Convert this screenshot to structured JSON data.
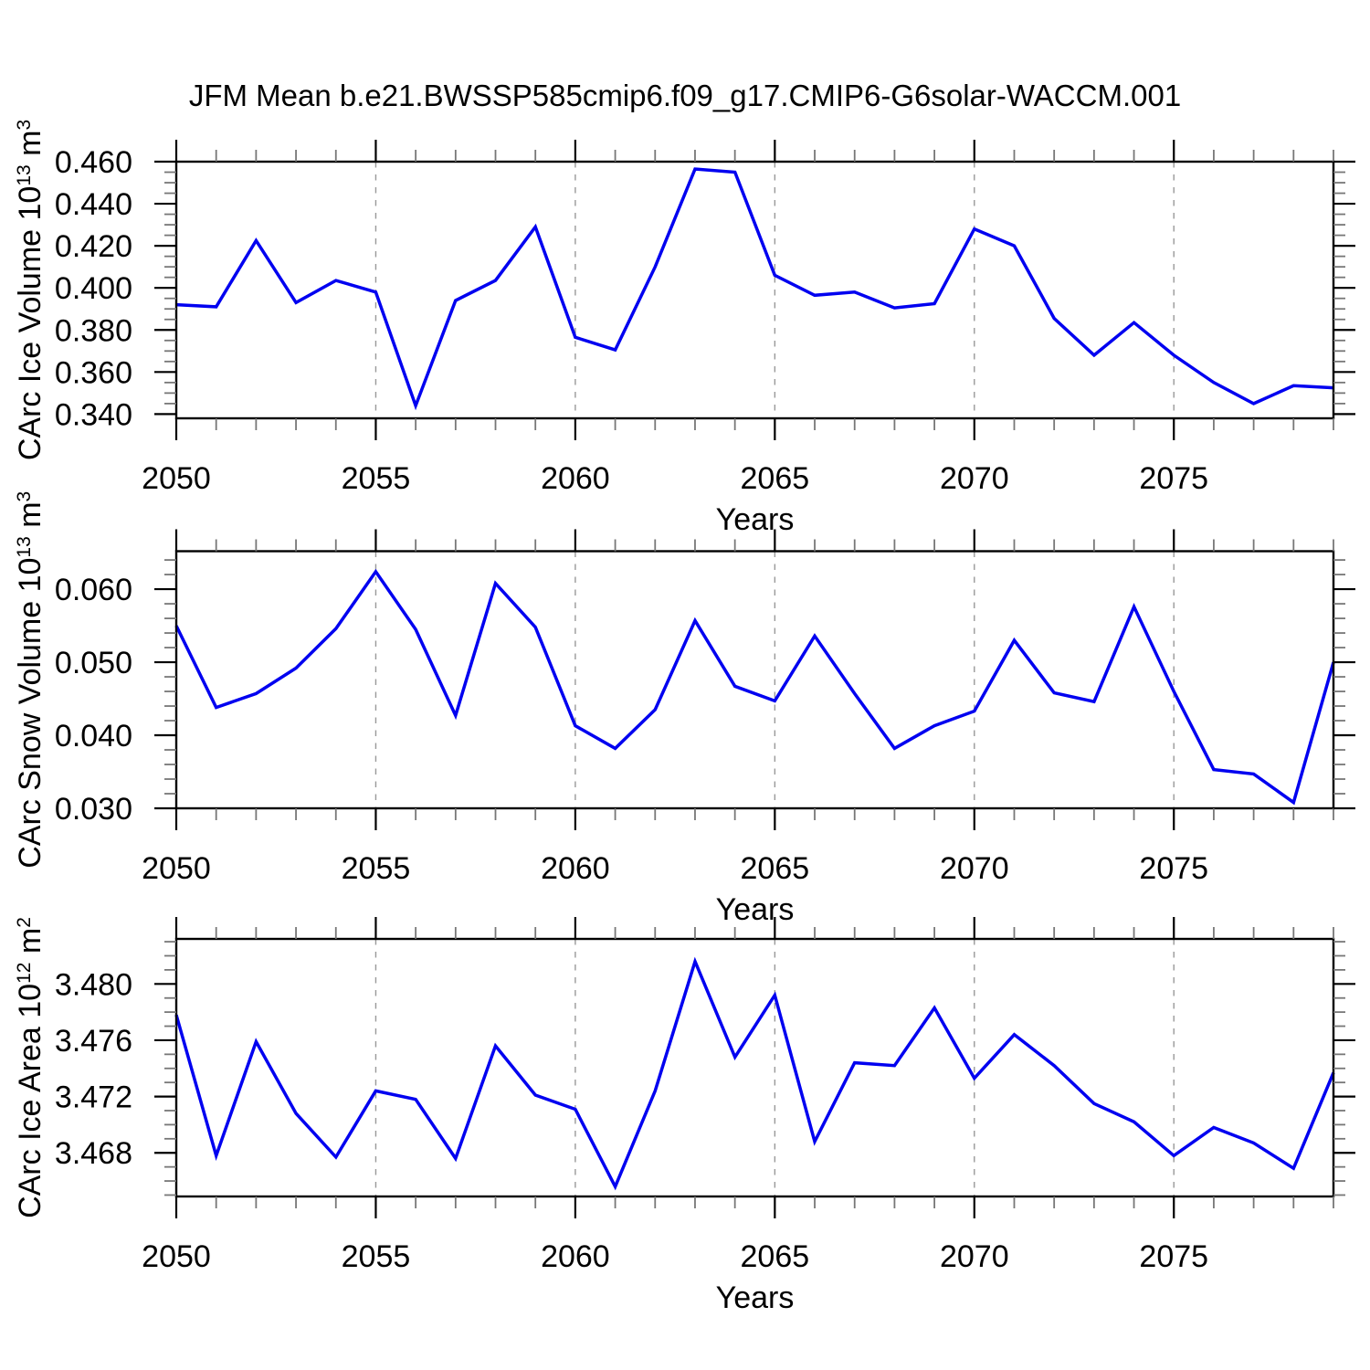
{
  "title": "JFM Mean b.e21.BWSSP585cmip6.f09_g17.CMIP6-G6solar-WACCM.001",
  "colors": {
    "line": "#0000f0",
    "frame": "#000000",
    "major_tick": "#000000",
    "minor_tick": "#777777",
    "grid": "#999999",
    "text": "#000000",
    "background": "#ffffff"
  },
  "chart_data": [
    {
      "type": "line",
      "name": "carc-ice-volume",
      "ylabel": "CArc Ice Volume 10^13 m^3",
      "ylabel_parts": [
        {
          "text": "CArc Ice Volume 10"
        },
        {
          "text": "13",
          "sup": true
        },
        {
          "text": " m"
        },
        {
          "text": "3",
          "sup": true
        }
      ],
      "xlabel": "Years",
      "x": [
        2050,
        2051,
        2052,
        2053,
        2054,
        2055,
        2056,
        2057,
        2058,
        2059,
        2060,
        2061,
        2062,
        2063,
        2064,
        2065,
        2066,
        2067,
        2068,
        2069,
        2070,
        2071,
        2072,
        2073,
        2074,
        2075,
        2076,
        2077,
        2078,
        2079
      ],
      "values": [
        0.392,
        0.391,
        0.4225,
        0.393,
        0.4035,
        0.398,
        0.344,
        0.394,
        0.4035,
        0.429,
        0.3765,
        0.3705,
        0.41,
        0.4565,
        0.455,
        0.406,
        0.3965,
        0.398,
        0.3905,
        0.3925,
        0.428,
        0.42,
        0.3855,
        0.368,
        0.3835,
        0.368,
        0.355,
        0.345,
        0.3535,
        0.3525
      ],
      "xlim": [
        2050,
        2079
      ],
      "ylim": [
        0.338,
        0.46
      ],
      "yticks": [
        0.34,
        0.36,
        0.38,
        0.4,
        0.42,
        0.44,
        0.46
      ],
      "ytick_labels": [
        "0.340",
        "0.360",
        "0.380",
        "0.400",
        "0.420",
        "0.440",
        "0.460"
      ],
      "y_minor_step": 0.005,
      "xticks": [
        2050,
        2055,
        2060,
        2065,
        2070,
        2075
      ],
      "xtick_labels": [
        "2050",
        "2055",
        "2060",
        "2065",
        "2070",
        "2075"
      ],
      "x_minor_step": 1,
      "grid_x": [
        2055,
        2060,
        2065,
        2070,
        2075
      ],
      "grid_on": true
    },
    {
      "type": "line",
      "name": "carc-snow-volume",
      "ylabel": "CArc Snow Volume 10^13 m^3",
      "ylabel_parts": [
        {
          "text": "CArc Snow Volume 10"
        },
        {
          "text": "13",
          "sup": true
        },
        {
          "text": " m"
        },
        {
          "text": "3",
          "sup": true
        }
      ],
      "xlabel": "Years",
      "x": [
        2050,
        2051,
        2052,
        2053,
        2054,
        2055,
        2056,
        2057,
        2058,
        2059,
        2060,
        2061,
        2062,
        2063,
        2064,
        2065,
        2066,
        2067,
        2068,
        2069,
        2070,
        2071,
        2072,
        2073,
        2074,
        2075,
        2076,
        2077,
        2078,
        2079
      ],
      "values": [
        0.055,
        0.0438,
        0.0457,
        0.0492,
        0.0546,
        0.0624,
        0.0545,
        0.0427,
        0.0608,
        0.0548,
        0.0413,
        0.0382,
        0.0435,
        0.0557,
        0.0467,
        0.0447,
        0.0536,
        0.0457,
        0.0382,
        0.0413,
        0.0433,
        0.053,
        0.0458,
        0.0446,
        0.0576,
        0.046,
        0.0353,
        0.0347,
        0.0308,
        0.05
      ],
      "xlim": [
        2050,
        2079
      ],
      "ylim": [
        0.03,
        0.0652
      ],
      "yticks": [
        0.03,
        0.04,
        0.05,
        0.06
      ],
      "ytick_labels": [
        "0.030",
        "0.040",
        "0.050",
        "0.060"
      ],
      "y_minor_step": 0.002,
      "xticks": [
        2050,
        2055,
        2060,
        2065,
        2070,
        2075
      ],
      "xtick_labels": [
        "2050",
        "2055",
        "2060",
        "2065",
        "2070",
        "2075"
      ],
      "x_minor_step": 1,
      "grid_x": [
        2055,
        2060,
        2065,
        2070,
        2075
      ],
      "grid_on": true
    },
    {
      "type": "line",
      "name": "carc-ice-area",
      "ylabel": "CArc Ice Area 10^12 m^2",
      "ylabel_parts": [
        {
          "text": "CArc Ice Area 10"
        },
        {
          "text": "12",
          "sup": true
        },
        {
          "text": " m"
        },
        {
          "text": "2",
          "sup": true
        }
      ],
      "xlabel": "Years",
      "x": [
        2050,
        2051,
        2052,
        2053,
        2054,
        2055,
        2056,
        2057,
        2058,
        2059,
        2060,
        2061,
        2062,
        2063,
        2064,
        2065,
        2066,
        2067,
        2068,
        2069,
        2070,
        2071,
        2072,
        2073,
        2074,
        2075,
        2076,
        2077,
        2078,
        2079
      ],
      "values": [
        3.4778,
        3.4678,
        3.4759,
        3.4708,
        3.4677,
        3.4724,
        3.4718,
        3.4676,
        3.4756,
        3.4721,
        3.4711,
        3.4656,
        3.4724,
        3.4816,
        3.4748,
        3.4792,
        3.4688,
        3.4744,
        3.4742,
        3.4783,
        3.4733,
        3.4764,
        3.4742,
        3.4715,
        3.4702,
        3.4678,
        3.4698,
        3.4687,
        3.4669,
        3.4737
      ],
      "xlim": [
        2050,
        2079
      ],
      "ylim": [
        3.4649,
        3.4832
      ],
      "yticks": [
        3.468,
        3.472,
        3.476,
        3.48
      ],
      "ytick_labels": [
        "3.468",
        "3.472",
        "3.476",
        "3.480"
      ],
      "y_minor_step": 0.001,
      "xticks": [
        2050,
        2055,
        2060,
        2065,
        2070,
        2075
      ],
      "xtick_labels": [
        "2050",
        "2055",
        "2060",
        "2065",
        "2070",
        "2075"
      ],
      "x_minor_step": 1,
      "grid_x": [
        2055,
        2060,
        2065,
        2070,
        2075
      ],
      "grid_on": true
    }
  ]
}
